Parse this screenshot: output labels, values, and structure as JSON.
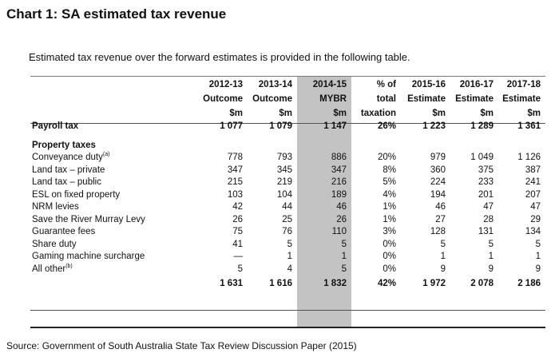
{
  "title": "Chart 1: SA estimated tax revenue",
  "intro": "Estimated tax revenue over the forward estimates is provided in the following table.",
  "source": "Source: Government of South Australia State Tax Review Discussion Paper (2015)",
  "table": {
    "headers": [
      [
        "2012-13",
        "Outcome",
        "$m"
      ],
      [
        "2013-14",
        "Outcome",
        "$m"
      ],
      [
        "2014-15",
        "MYBR",
        "$m"
      ],
      [
        "% of",
        "total",
        "taxation"
      ],
      [
        "2015-16",
        "Estimate",
        "$m"
      ],
      [
        "2016-17",
        "Estimate",
        "$m"
      ],
      [
        "2017-18",
        "Estimate",
        "$m"
      ]
    ],
    "payroll": {
      "label": "Payroll tax",
      "values": [
        "1 077",
        "1 079",
        "1 147",
        "26%",
        "1 223",
        "1 289",
        "1 361"
      ]
    },
    "section_heading": "Property taxes",
    "rows": [
      {
        "label": "Conveyance duty",
        "sup": "(a)",
        "values": [
          "778",
          "793",
          "886",
          "20%",
          "979",
          "1 049",
          "1 126"
        ]
      },
      {
        "label": "Land tax – private",
        "sup": "",
        "values": [
          "347",
          "345",
          "347",
          "8%",
          "360",
          "375",
          "387"
        ]
      },
      {
        "label": "Land tax – public",
        "sup": "",
        "values": [
          "215",
          "219",
          "216",
          "5%",
          "224",
          "233",
          "241"
        ]
      },
      {
        "label": "ESL on fixed property",
        "sup": "",
        "values": [
          "103",
          "104",
          "189",
          "4%",
          "194",
          "201",
          "207"
        ]
      },
      {
        "label": "NRM levies",
        "sup": "",
        "values": [
          "42",
          "44",
          "46",
          "1%",
          "46",
          "47",
          "47"
        ]
      },
      {
        "label": "Save the River Murray Levy",
        "sup": "",
        "values": [
          "26",
          "25",
          "26",
          "1%",
          "27",
          "28",
          "29"
        ]
      },
      {
        "label": "Guarantee fees",
        "sup": "",
        "values": [
          "75",
          "76",
          "110",
          "3%",
          "128",
          "131",
          "134"
        ]
      },
      {
        "label": "Share duty",
        "sup": "",
        "values": [
          "41",
          "5",
          "5",
          "0%",
          "5",
          "5",
          "5"
        ]
      },
      {
        "label": "Gaming machine surcharge",
        "sup": "",
        "values": [
          "—",
          "1",
          "1",
          "0%",
          "1",
          "1",
          "1"
        ]
      },
      {
        "label": "All other",
        "sup": "(b)",
        "values": [
          "5",
          "4",
          "5",
          "0%",
          "9",
          "9",
          "9"
        ]
      }
    ],
    "total": {
      "values": [
        "1 631",
        "1 616",
        "1 832",
        "42%",
        "1 972",
        "2 078",
        "2 186"
      ]
    }
  }
}
